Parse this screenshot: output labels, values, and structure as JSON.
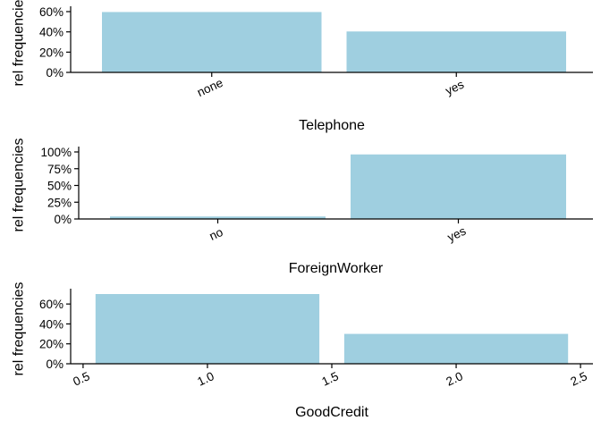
{
  "chart_data": [
    {
      "type": "bar",
      "xlabel": "Telephone",
      "ylabel": "rel frequencies",
      "categories": [
        "none",
        "yes"
      ],
      "values": [
        0.596,
        0.404
      ],
      "ylim": [
        0,
        0.6
      ],
      "yticks": [
        0,
        0.2,
        0.4,
        0.6
      ],
      "ytick_labels": [
        "0%",
        "20%",
        "40%",
        "60%"
      ],
      "bar_color": "#9fcfe0",
      "grid": false
    },
    {
      "type": "bar",
      "xlabel": "ForeignWorker",
      "ylabel": "rel frequencies",
      "categories": [
        "no",
        "yes"
      ],
      "values": [
        0.037,
        0.963
      ],
      "ylim": [
        0,
        1.0
      ],
      "yticks": [
        0,
        0.25,
        0.5,
        0.75,
        1.0
      ],
      "ytick_labels": [
        "0%",
        "25%",
        "50%",
        "75%",
        "100%"
      ],
      "bar_color": "#9fcfe0",
      "grid": false
    },
    {
      "type": "bar",
      "xlabel": "GoodCredit",
      "ylabel": "rel frequencies",
      "x": [
        1.0,
        2.0
      ],
      "values": [
        0.7,
        0.3
      ],
      "bar_width": 0.9,
      "xlim": [
        0.5,
        2.5
      ],
      "xticks": [
        0.5,
        1.0,
        1.5,
        2.0,
        2.5
      ],
      "xtick_labels": [
        "0.5",
        "1.0",
        "1.5",
        "2.0",
        "2.5"
      ],
      "ylim": [
        0,
        0.7
      ],
      "yticks": [
        0,
        0.2,
        0.4,
        0.6
      ],
      "ytick_labels": [
        "0%",
        "20%",
        "40%",
        "60%"
      ],
      "bar_color": "#9fcfe0",
      "grid": false
    }
  ]
}
